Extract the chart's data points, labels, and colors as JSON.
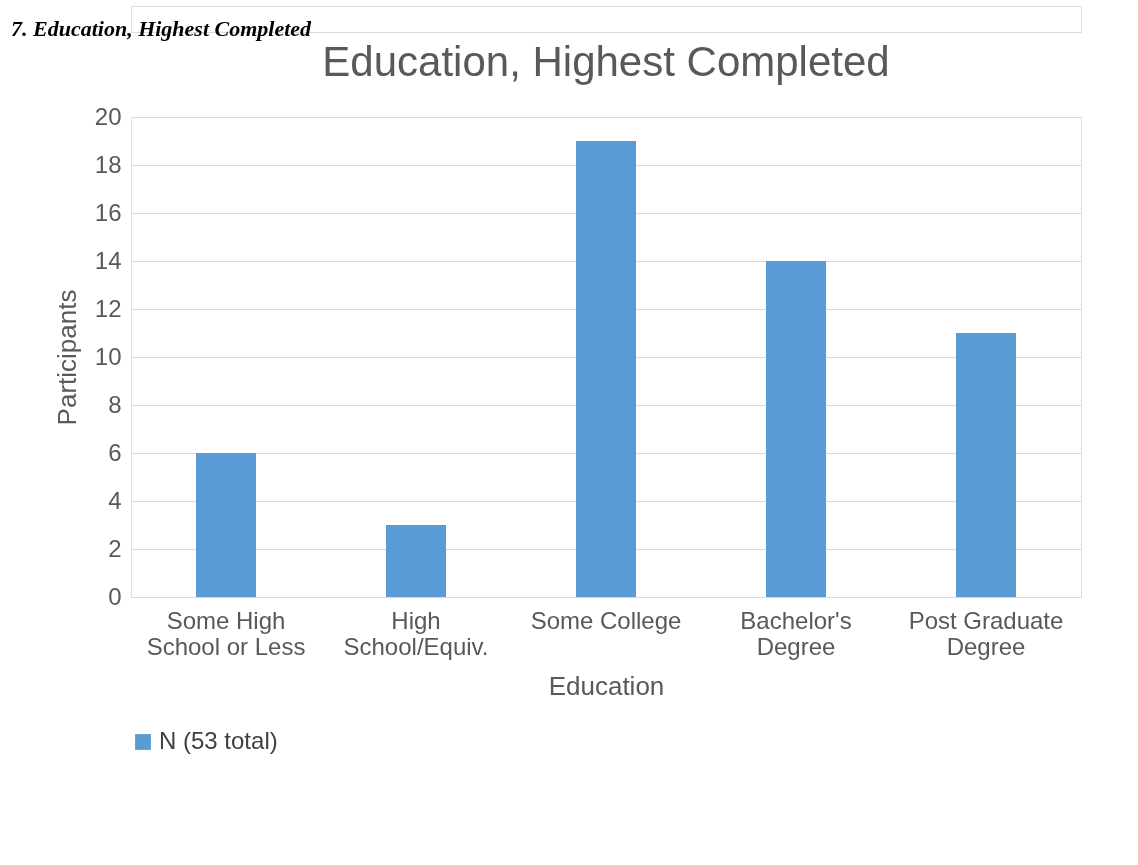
{
  "chart_data": {
    "type": "bar",
    "title": "Education, Highest Completed",
    "annotations": [
      "7. Education, Highest Completed"
    ],
    "xlabel": "Education",
    "ylabel": "Participants",
    "categories": [
      "Some High School or Less",
      "High School/Equiv.",
      "Some College",
      "Bachelor's Degree",
      "Post Graduate Degree"
    ],
    "series": [
      {
        "name": "N (53 total)",
        "color": "#5b9bd5",
        "values": [
          6,
          3,
          19,
          14,
          11
        ]
      }
    ],
    "ylim": [
      0,
      20
    ],
    "yticks": [
      0,
      2,
      4,
      6,
      8,
      10,
      12,
      14,
      16,
      18,
      20
    ],
    "grid": "y",
    "legend": "bottom"
  }
}
